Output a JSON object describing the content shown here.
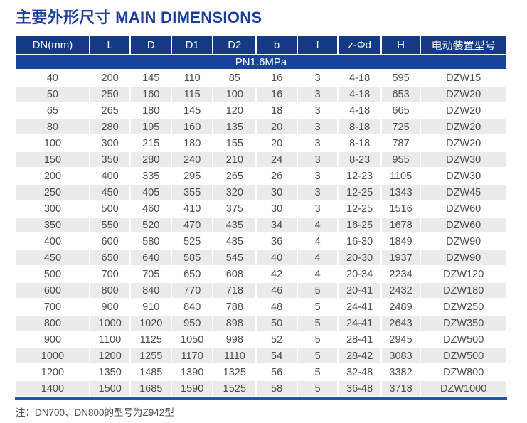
{
  "title": "主要外形尺寸 MAIN DIMENSIONS",
  "note": "注：DN700、DN800的型号为Z942型",
  "colors": {
    "title_blue": "#1b3e9b",
    "header_navy": "#153a85",
    "band_blue": "#16439c",
    "bottom_rule_blue": "#1f55ac",
    "stripe_gray": "#ebebeb",
    "body_text_gray": "#4d4d4d"
  },
  "table": {
    "columns": [
      "DN(mm)",
      "L",
      "D",
      "D1",
      "D2",
      "b",
      "f",
      "z-Φd",
      "H",
      "电动装置型号"
    ],
    "pressure_band": "PN1.6MPa",
    "rows": [
      [
        "40",
        "200",
        "145",
        "110",
        "85",
        "16",
        "3",
        "4-18",
        "595",
        "DZW15"
      ],
      [
        "50",
        "250",
        "160",
        "115",
        "100",
        "16",
        "3",
        "4-18",
        "653",
        "DZW20"
      ],
      [
        "65",
        "265",
        "180",
        "145",
        "120",
        "18",
        "3",
        "4-18",
        "665",
        "DZW20"
      ],
      [
        "80",
        "280",
        "195",
        "160",
        "135",
        "20",
        "3",
        "8-18",
        "725",
        "DZW20"
      ],
      [
        "100",
        "300",
        "215",
        "180",
        "155",
        "20",
        "3",
        "8-18",
        "787",
        "DZW20"
      ],
      [
        "150",
        "350",
        "280",
        "240",
        "210",
        "24",
        "3",
        "8-23",
        "955",
        "DZW30"
      ],
      [
        "200",
        "400",
        "335",
        "295",
        "265",
        "26",
        "3",
        "12-23",
        "1105",
        "DZW30"
      ],
      [
        "250",
        "450",
        "405",
        "355",
        "320",
        "30",
        "3",
        "12-25",
        "1343",
        "DZW45"
      ],
      [
        "300",
        "500",
        "460",
        "410",
        "375",
        "30",
        "3",
        "12-25",
        "1516",
        "DZW60"
      ],
      [
        "350",
        "550",
        "520",
        "470",
        "435",
        "34",
        "4",
        "16-25",
        "1678",
        "DZW60"
      ],
      [
        "400",
        "600",
        "580",
        "525",
        "485",
        "36",
        "4",
        "16-30",
        "1849",
        "DZW90"
      ],
      [
        "450",
        "650",
        "640",
        "585",
        "545",
        "40",
        "4",
        "20-30",
        "1937",
        "DZW90"
      ],
      [
        "500",
        "700",
        "705",
        "650",
        "608",
        "42",
        "4",
        "20-34",
        "2234",
        "DZW120"
      ],
      [
        "600",
        "800",
        "840",
        "770",
        "718",
        "46",
        "5",
        "20-41",
        "2432",
        "DZW180"
      ],
      [
        "700",
        "900",
        "910",
        "840",
        "788",
        "48",
        "5",
        "24-41",
        "2489",
        "DZW250"
      ],
      [
        "800",
        "1000",
        "1020",
        "950",
        "898",
        "50",
        "5",
        "24-41",
        "2643",
        "DZW350"
      ],
      [
        "900",
        "1100",
        "1125",
        "1050",
        "998",
        "52",
        "5",
        "28-41",
        "2945",
        "DZW500"
      ],
      [
        "1000",
        "1200",
        "1255",
        "1170",
        "1110",
        "54",
        "5",
        "28-42",
        "3083",
        "DZW500"
      ],
      [
        "1200",
        "1350",
        "1485",
        "1390",
        "1325",
        "56",
        "5",
        "32-48",
        "3382",
        "DZW800"
      ],
      [
        "1400",
        "1500",
        "1685",
        "1590",
        "1525",
        "58",
        "5",
        "36-48",
        "3718",
        "DZW1000"
      ]
    ]
  }
}
